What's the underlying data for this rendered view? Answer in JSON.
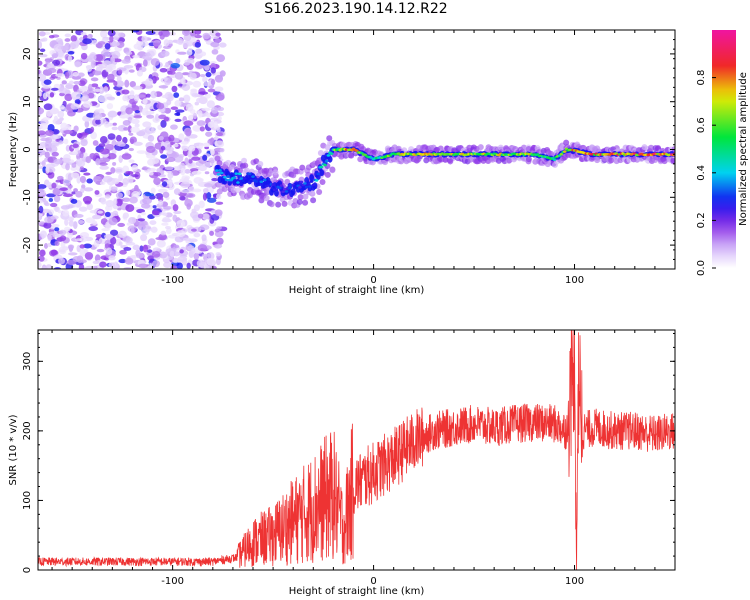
{
  "title": "S166.2023.190.14.12.R22",
  "colors": {
    "snr_line": "#ee3333",
    "frame": "#000000",
    "background": "#ffffff",
    "spectrogram_noise": "#8a2be2"
  },
  "chart_data": [
    {
      "type": "heatmap",
      "xlabel": "Height of straight line (km)",
      "ylabel": "Frequency (Hz)",
      "xlim": [
        -167,
        150
      ],
      "ylim": [
        -25,
        25
      ],
      "x_ticks": [
        -100,
        0,
        100
      ],
      "y_ticks": [
        -20,
        -10,
        0,
        10,
        20
      ],
      "colorbar": {
        "label": "Normalized spectral amplitude",
        "range": [
          0.0,
          1.0
        ],
        "ticks": [
          "0.0",
          "0.2",
          "0.4",
          "0.6",
          "0.8"
        ],
        "tick_values": [
          0.0,
          0.2,
          0.4,
          0.6,
          0.8
        ],
        "colormap": "rainbow (white-purple-blue-cyan-green-yellow-red-pink)"
      },
      "noise_region": {
        "x": [
          -167,
          -75
        ],
        "frequency": [
          -25,
          25
        ],
        "amplitude": 0.2
      },
      "ridge": [
        {
          "x": -78,
          "frequency": -5,
          "amplitude": 0.35
        },
        {
          "x": -70,
          "frequency": -6,
          "amplitude": 0.4
        },
        {
          "x": -60,
          "frequency": -6,
          "amplitude": 0.35
        },
        {
          "x": -50,
          "frequency": -8,
          "amplitude": 0.3
        },
        {
          "x": -40,
          "frequency": -8,
          "amplitude": 0.3
        },
        {
          "x": -30,
          "frequency": -7,
          "amplitude": 0.35
        },
        {
          "x": -25,
          "frequency": -3,
          "amplitude": 0.45
        },
        {
          "x": -20,
          "frequency": 0,
          "amplitude": 0.6
        },
        {
          "x": -10,
          "frequency": 0,
          "amplitude": 0.9
        },
        {
          "x": -5,
          "frequency": -1,
          "amplitude": 0.6
        },
        {
          "x": 0,
          "frequency": -2,
          "amplitude": 0.5
        },
        {
          "x": 10,
          "frequency": -1,
          "amplitude": 0.7
        },
        {
          "x": 20,
          "frequency": -1,
          "amplitude": 0.75
        },
        {
          "x": 40,
          "frequency": -1,
          "amplitude": 0.7
        },
        {
          "x": 60,
          "frequency": -1,
          "amplitude": 0.7
        },
        {
          "x": 80,
          "frequency": -1,
          "amplitude": 0.7
        },
        {
          "x": 90,
          "frequency": -2,
          "amplitude": 0.5
        },
        {
          "x": 96,
          "frequency": 0,
          "amplitude": 0.8
        },
        {
          "x": 110,
          "frequency": -1,
          "amplitude": 0.8
        },
        {
          "x": 130,
          "frequency": -1,
          "amplitude": 0.85
        },
        {
          "x": 150,
          "frequency": -1,
          "amplitude": 0.9
        }
      ]
    },
    {
      "type": "line",
      "xlabel": "Height of straight line (km)",
      "ylabel": "SNR (10 * v/v)",
      "xlim": [
        -167,
        150
      ],
      "ylim": [
        0,
        345
      ],
      "x_ticks": [
        -100,
        0,
        100
      ],
      "y_ticks": [
        0,
        100,
        200,
        300
      ],
      "series": [
        {
          "values_description_points": [
            {
              "x": -167,
              "y": 12
            },
            {
              "x": -120,
              "y": 12
            },
            {
              "x": -80,
              "y": 12
            },
            {
              "x": -68,
              "y": 18
            },
            {
              "x": -60,
              "y": 40
            },
            {
              "x": -50,
              "y": 50
            },
            {
              "x": -40,
              "y": 70
            },
            {
              "x": -30,
              "y": 90
            },
            {
              "x": -20,
              "y": 110
            },
            {
              "x": -15,
              "y": 60
            },
            {
              "x": -10,
              "y": 120
            },
            {
              "x": 0,
              "y": 140
            },
            {
              "x": 10,
              "y": 160
            },
            {
              "x": 20,
              "y": 185
            },
            {
              "x": 30,
              "y": 200
            },
            {
              "x": 40,
              "y": 205
            },
            {
              "x": 50,
              "y": 210
            },
            {
              "x": 60,
              "y": 205
            },
            {
              "x": 70,
              "y": 210
            },
            {
              "x": 80,
              "y": 212
            },
            {
              "x": 90,
              "y": 210
            },
            {
              "x": 96,
              "y": 200
            },
            {
              "x": 100,
              "y": 300
            },
            {
              "x": 101,
              "y": 40
            },
            {
              "x": 102,
              "y": 280
            },
            {
              "x": 104,
              "y": 200
            },
            {
              "x": 110,
              "y": 205
            },
            {
              "x": 120,
              "y": 200
            },
            {
              "x": 130,
              "y": 200
            },
            {
              "x": 140,
              "y": 195
            },
            {
              "x": 150,
              "y": 200
            }
          ]
        }
      ]
    }
  ]
}
